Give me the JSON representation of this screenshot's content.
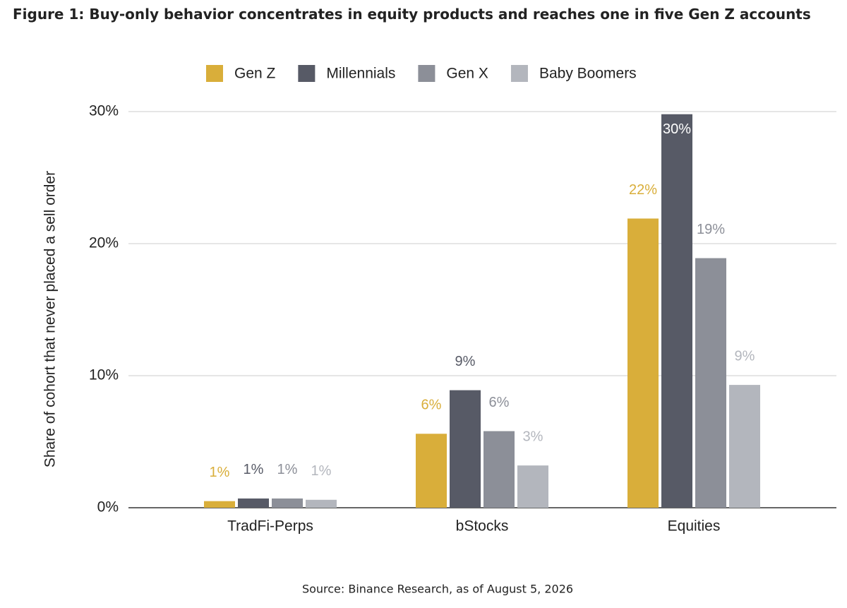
{
  "chart_data": {
    "type": "bar",
    "title": "Figure 1: Buy-only behavior concentrates in equity products and reaches one in five Gen Z accounts",
    "y_label": "Share of cohort that never placed a sell order",
    "source": "Source: Binance Research, as of August 5, 2026",
    "categories": [
      "TradFi-Perps",
      "bStocks",
      "Equities"
    ],
    "series": [
      {
        "name": "Gen Z",
        "color": "#d9ae3a",
        "values": [
          0.5,
          5.6,
          21.9
        ],
        "value_labels": [
          "1%",
          "6%",
          "22%"
        ]
      },
      {
        "name": "Millennials",
        "color": "#575a66",
        "values": [
          0.7,
          8.9,
          29.8
        ],
        "value_labels": [
          "1%",
          "9%",
          "30%"
        ]
      },
      {
        "name": "Gen X",
        "color": "#8c8f98",
        "values": [
          0.7,
          5.8,
          18.9
        ],
        "value_labels": [
          "1%",
          "6%",
          "19%"
        ]
      },
      {
        "name": "Baby Boomers",
        "color": "#b3b6bd",
        "values": [
          0.6,
          3.2,
          9.3
        ],
        "value_labels": [
          "1%",
          "3%",
          "9%"
        ]
      }
    ],
    "ylim": [
      0,
      30
    ],
    "yticks": [
      {
        "value": 0,
        "label": "0%"
      },
      {
        "value": 10,
        "label": "10%"
      },
      {
        "value": 20,
        "label": "20%"
      },
      {
        "value": 30,
        "label": "30%"
      }
    ],
    "grid": true,
    "legend": "top"
  }
}
